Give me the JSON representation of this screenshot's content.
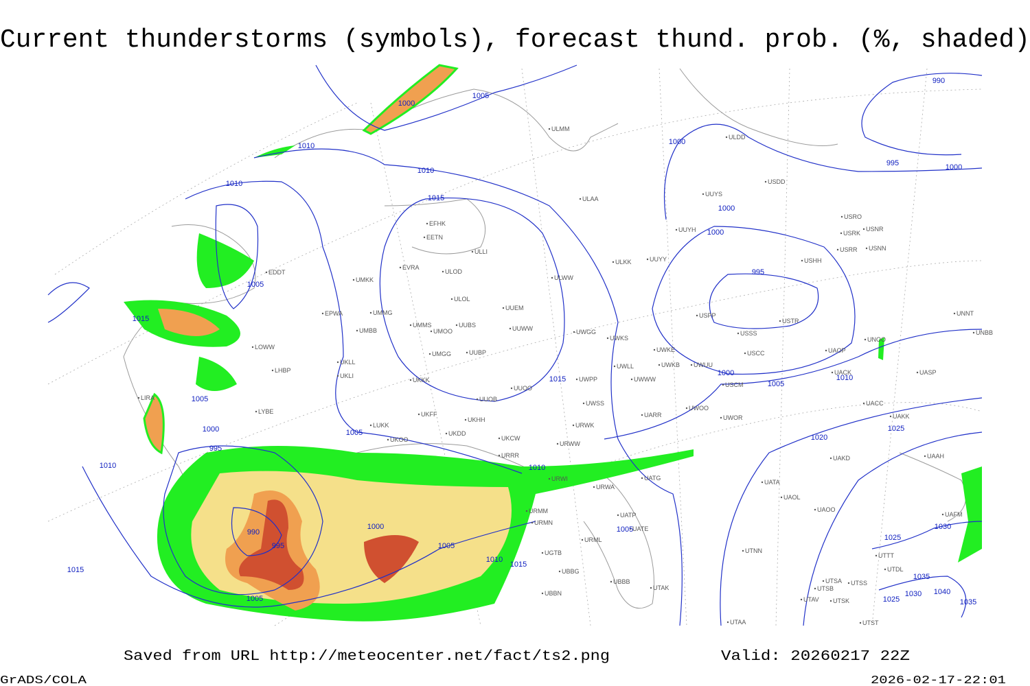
{
  "title": "Current thunderstorms (symbols), forecast thund. prob. (%, shaded)",
  "footer": {
    "source": "Saved from URL http://meteocenter.net/fact/ts2.png",
    "valid": "Valid: 20260217 22Z",
    "software": "GrADS/COLA",
    "timestamp": "2026-02-17-22:01"
  },
  "isobar_labels": [
    1000,
    1005,
    1010,
    1010,
    1010,
    1015,
    1005,
    1015,
    1005,
    1000,
    995,
    1010,
    1005,
    1010,
    1000,
    990,
    995,
    1005,
    1010,
    1015,
    1005,
    1015,
    1005,
    1015,
    1000,
    1005,
    1010,
    1020,
    1025,
    1025,
    1030,
    1035,
    1040,
    1030,
    1025,
    1035,
    995,
    1000,
    1000,
    1000,
    995,
    1000,
    990
  ],
  "stations": [
    "EDDT",
    "EPWA",
    "UMKK",
    "UMMG",
    "UMBB",
    "LOWW",
    "LHBP",
    "LIRA",
    "LYBE",
    "LUKK",
    "UKOO",
    "UKDD",
    "UKHH",
    "UKFF",
    "UKKK",
    "UKLI",
    "UKLL",
    "UUOB",
    "UUOO",
    "UUBP",
    "UMGG",
    "UMOO",
    "UMMS",
    "UUBS",
    "UUWW",
    "UUEM",
    "ULOL",
    "ULOD",
    "EVRA",
    "EETN",
    "EFHK",
    "ULLI",
    "ULAA",
    "ULMM",
    "ULDD",
    "UUYS",
    "USDD",
    "UUYH",
    "USRR",
    "USRK",
    "USRO",
    "USNR",
    "USNN",
    "USHH",
    "ULWW",
    "ULKK",
    "UUYY",
    "UWGG",
    "UWKS",
    "USPP",
    "USSS",
    "USTR",
    "USCC",
    "UWKE",
    "UWKB",
    "UWUU",
    "UWLL",
    "UWWW",
    "UWPP",
    "USCM",
    "UWSS",
    "UARR",
    "UWOO",
    "UWOR",
    "URWW",
    "URWK",
    "UKCW",
    "URRR",
    "URWI",
    "UATG",
    "URWA",
    "UATP",
    "UATE",
    "URML",
    "URMM",
    "URMN",
    "UGTB",
    "UBBG",
    "UBBB",
    "UTAK",
    "UBBN",
    "UATA",
    "UAOL",
    "UAOO",
    "UAKD",
    "UACC",
    "UAKK",
    "UAAH",
    "UASP",
    "UNBB",
    "UNNT",
    "UNOO",
    "UACK",
    "UAOP",
    "UTNN",
    "UTSA",
    "UTSB",
    "UTSS",
    "UTAV",
    "UTSK",
    "UTAA",
    "UTST",
    "UTDL",
    "UTTT",
    "UAFM"
  ]
}
